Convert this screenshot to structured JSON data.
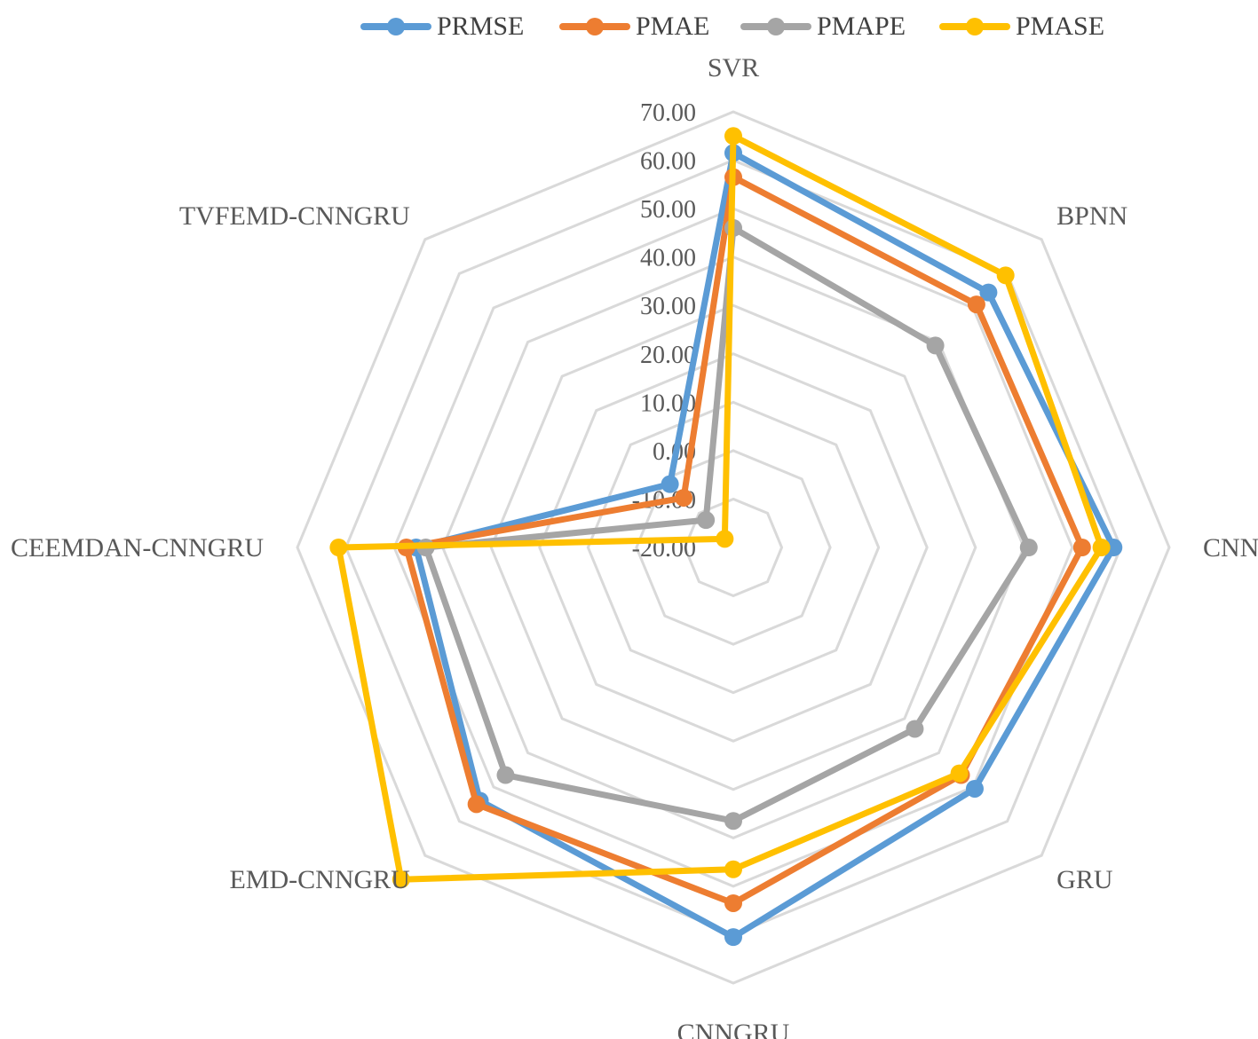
{
  "chart_data": {
    "type": "radar",
    "categories": [
      "SVR",
      "BPNN",
      "CNN",
      "GRU",
      "CNNGRU",
      "EMD-CNNGRU",
      "CEEMDAN-CNNGRU",
      "TVFEMD-CNNGRU"
    ],
    "rlim": [
      -20,
      70
    ],
    "ticks": [
      "-20.00",
      "-10.00",
      "0.00",
      "10.00",
      "20.00",
      "30.00",
      "40.00",
      "50.00",
      "60.00",
      "70.00"
    ],
    "tick_values": [
      -20,
      -10,
      0,
      10,
      20,
      30,
      40,
      50,
      60,
      70
    ],
    "legend_position": "top",
    "grid": true,
    "series": [
      {
        "name": "PRMSE",
        "color": "#5B9BD5",
        "values": [
          61.5,
          54.5,
          58.5,
          50.5,
          60.5,
          54.0,
          45.5,
          -1.5
        ]
      },
      {
        "name": "PMAE",
        "color": "#ED7D31",
        "values": [
          56.5,
          51.0,
          52.0,
          46.5,
          53.5,
          55.0,
          47.5,
          -5.5
        ]
      },
      {
        "name": "PMAPE",
        "color": "#A5A5A5",
        "values": [
          46.0,
          39.0,
          41.0,
          33.0,
          36.5,
          46.5,
          43.5,
          -12.0
        ]
      },
      {
        "name": "PMASE",
        "color": "#FFC000",
        "values": [
          65.0,
          59.5,
          56.0,
          46.0,
          46.5,
          77.0,
          61.5,
          -17.5
        ]
      }
    ]
  }
}
